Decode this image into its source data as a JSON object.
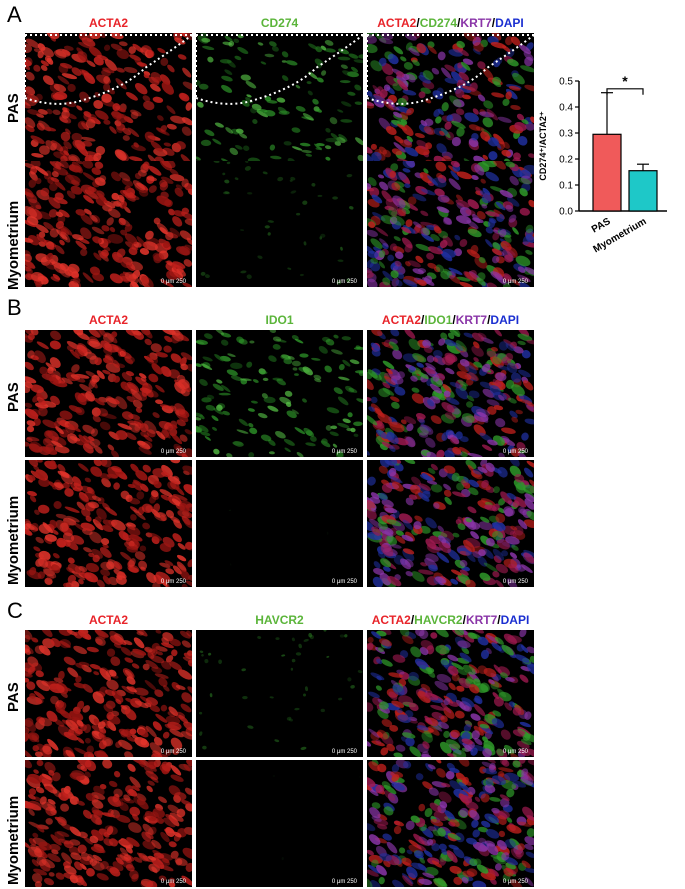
{
  "panels": [
    {
      "letter": "A",
      "channels": [
        {
          "text": "ACTA2",
          "color": "#e8242a"
        },
        {
          "text": "CD274",
          "color": "#5bb53a"
        },
        {
          "parts": [
            {
              "text": "ACTA2",
              "color": "#e8242a"
            },
            {
              "text": "/",
              "color": "#000000"
            },
            {
              "text": "CD274",
              "color": "#5bb53a"
            },
            {
              "text": "/",
              "color": "#000000"
            },
            {
              "text": "KRT7",
              "color": "#8a35a8"
            },
            {
              "text": "/",
              "color": "#000000"
            },
            {
              "text": "DAPI",
              "color": "#1b2fd1"
            }
          ]
        }
      ],
      "rows": [
        "PAS",
        "Myometrium"
      ]
    },
    {
      "letter": "B",
      "channels": [
        {
          "text": "ACTA2",
          "color": "#e8242a"
        },
        {
          "text": "IDO1",
          "color": "#5bb53a"
        },
        {
          "parts": [
            {
              "text": "ACTA2",
              "color": "#e8242a"
            },
            {
              "text": "/",
              "color": "#000000"
            },
            {
              "text": "IDO1",
              "color": "#5bb53a"
            },
            {
              "text": "/",
              "color": "#000000"
            },
            {
              "text": "KRT7",
              "color": "#8a35a8"
            },
            {
              "text": "/",
              "color": "#000000"
            },
            {
              "text": "DAPI",
              "color": "#1b2fd1"
            }
          ]
        }
      ],
      "rows": [
        "PAS",
        "Myometrium"
      ]
    },
    {
      "letter": "C",
      "channels": [
        {
          "text": "ACTA2",
          "color": "#e8242a"
        },
        {
          "text": "HAVCR2",
          "color": "#5bb53a"
        },
        {
          "parts": [
            {
              "text": "ACTA2",
              "color": "#e8242a"
            },
            {
              "text": "/",
              "color": "#000000"
            },
            {
              "text": "HAVCR2",
              "color": "#5bb53a"
            },
            {
              "text": "/",
              "color": "#000000"
            },
            {
              "text": "KRT7",
              "color": "#8a35a8"
            },
            {
              "text": "/",
              "color": "#000000"
            },
            {
              "text": "DAPI",
              "color": "#1b2fd1"
            }
          ]
        }
      ],
      "rows": [
        "PAS",
        "Myometrium"
      ]
    }
  ],
  "scale_bar": "0    μm 250",
  "chart_data": {
    "type": "bar",
    "categories": [
      "PAS",
      "Myometrium"
    ],
    "values": [
      0.295,
      0.155
    ],
    "errors": [
      0.16,
      0.025
    ],
    "colors": [
      "#f05a5a",
      "#1ec8c8"
    ],
    "ylabel": "CD274⁺/ACTA2⁺",
    "ylim": [
      0,
      0.5
    ],
    "yticks": [
      "0.0",
      "0.1",
      "0.2",
      "0.3",
      "0.4",
      "0.5"
    ],
    "significance": "*"
  }
}
